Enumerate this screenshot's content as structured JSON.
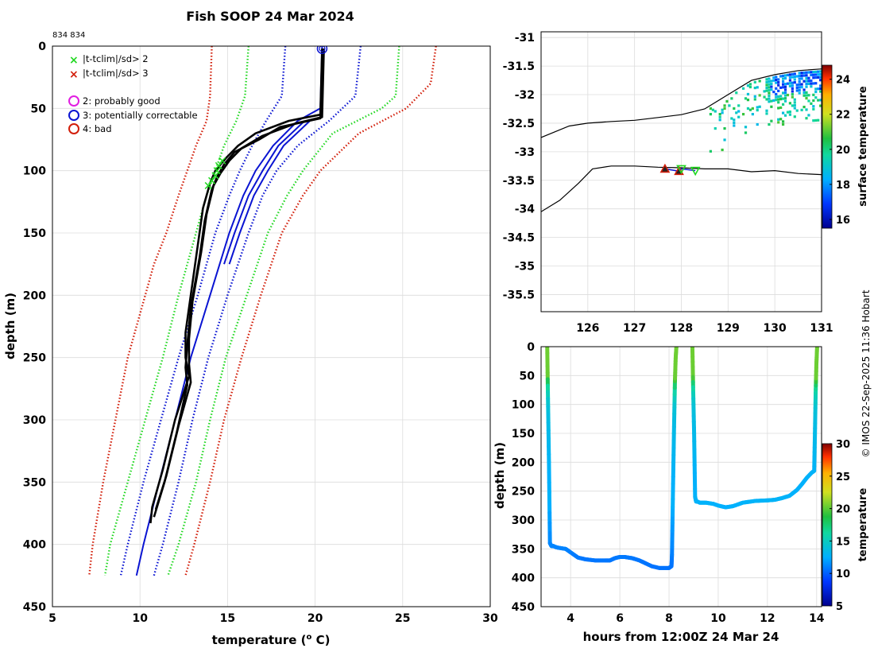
{
  "figure": {
    "title": "Fish SOOP 24 Mar 2024",
    "id_label": "834 834",
    "credit": "© IMOS 22-Sep-2025 11:36 Hobart"
  },
  "colors": {
    "black": "#000000",
    "blue": "#0a14d2",
    "green": "#22d822",
    "red": "#d21e0a",
    "magenta": "#e11ee1",
    "grid": "#dcdcdc",
    "land": "#000000"
  },
  "chart_data": [
    {
      "type": "line",
      "name": "temperature-profile",
      "title": "Fish SOOP 24 Mar 2024",
      "xlabel": "temperature (° C)",
      "ylabel": "depth (m)",
      "xlim": [
        5,
        30
      ],
      "ylim": [
        450,
        0
      ],
      "xticks": [
        5,
        10,
        15,
        20,
        25,
        30
      ],
      "yticks": [
        0,
        50,
        100,
        150,
        200,
        250,
        300,
        350,
        400,
        450
      ],
      "grid": true,
      "legend": {
        "position": "top-left",
        "entries": [
          {
            "label": "|t-tclim|/sd> 2",
            "marker": "x",
            "color": "#22d822"
          },
          {
            "label": "|t-tclim|/sd> 3",
            "marker": "x",
            "color": "#d21e0a"
          },
          {
            "label": "2: probably good",
            "marker": "o",
            "color": "#e11ee1"
          },
          {
            "label": "3: potentially correctable",
            "marker": "o",
            "color": "#0a14d2"
          },
          {
            "label": "4: bad",
            "marker": "o",
            "color": "#d21e0a"
          }
        ]
      },
      "climatology": [
        {
          "name": "clim-red-left",
          "color": "#d21e0a",
          "style": "dotted",
          "depths": [
            0,
            40,
            60,
            80,
            100,
            120,
            150,
            175,
            200,
            250,
            300,
            350,
            400,
            425
          ],
          "temps": [
            14.1,
            14.0,
            13.8,
            13.2,
            12.7,
            12.2,
            11.5,
            10.8,
            10.3,
            9.3,
            8.6,
            7.9,
            7.3,
            7.1
          ]
        },
        {
          "name": "clim-green-left",
          "color": "#22d822",
          "style": "dotted",
          "depths": [
            0,
            40,
            60,
            80,
            100,
            120,
            150,
            175,
            200,
            250,
            300,
            350,
            400,
            425
          ],
          "temps": [
            16.2,
            16.0,
            15.5,
            14.8,
            14.3,
            13.8,
            13.2,
            12.7,
            12.2,
            11.3,
            10.3,
            9.3,
            8.3,
            8.0
          ]
        },
        {
          "name": "clim-blue-left",
          "color": "#0a14d2",
          "style": "dotted",
          "depths": [
            0,
            40,
            60,
            80,
            100,
            120,
            150,
            175,
            200,
            250,
            300,
            350,
            400,
            425
          ],
          "temps": [
            18.3,
            18.1,
            17.2,
            16.4,
            15.7,
            15.1,
            14.3,
            13.8,
            13.3,
            12.2,
            11.2,
            10.2,
            9.3,
            8.9
          ]
        },
        {
          "name": "clim-blue-right",
          "color": "#0a14d2",
          "style": "dotted",
          "depths": [
            0,
            40,
            60,
            80,
            100,
            120,
            150,
            175,
            200,
            250,
            300,
            350,
            400,
            425
          ],
          "temps": [
            22.6,
            22.3,
            20.8,
            19.0,
            17.8,
            17.0,
            16.2,
            15.6,
            15.0,
            13.9,
            13.0,
            12.2,
            11.3,
            10.8
          ]
        },
        {
          "name": "clim-green-right",
          "color": "#22d822",
          "style": "dotted",
          "depths": [
            0,
            40,
            50,
            70,
            100,
            120,
            150,
            175,
            200,
            250,
            300,
            350,
            400,
            425
          ],
          "temps": [
            24.8,
            24.6,
            23.8,
            21.0,
            19.3,
            18.4,
            17.3,
            16.7,
            16.1,
            14.9,
            14.0,
            13.2,
            12.2,
            11.6
          ]
        },
        {
          "name": "clim-red-right",
          "color": "#d21e0a",
          "style": "dotted",
          "depths": [
            0,
            30,
            50,
            70,
            100,
            120,
            150,
            175,
            200,
            250,
            300,
            350,
            400,
            425
          ],
          "temps": [
            26.9,
            26.6,
            25.2,
            22.5,
            20.3,
            19.3,
            18.1,
            17.5,
            16.9,
            15.8,
            14.8,
            14.0,
            13.1,
            12.6
          ]
        }
      ],
      "climatology_mean": {
        "name": "clim-mean",
        "color": "#0a14d2",
        "depths": [
          0,
          50,
          60,
          80,
          100,
          120,
          150,
          200,
          250,
          300,
          350,
          400,
          425
        ],
        "temps": [
          20.4,
          20.3,
          19.0,
          17.6,
          16.6,
          15.9,
          15.1,
          14.0,
          12.9,
          12.0,
          11.1,
          10.2,
          9.8
        ]
      },
      "climatology_mean_double": [
        {
          "name": "clim-mean-double-a",
          "color": "#0a14d2",
          "depths": [
            60,
            80,
            100,
            120,
            150,
            175
          ],
          "temps": [
            19.4,
            17.9,
            17.0,
            16.2,
            15.4,
            14.8
          ]
        },
        {
          "name": "clim-mean-double-b",
          "color": "#0a14d2",
          "depths": [
            60,
            80,
            100,
            120,
            150,
            175
          ],
          "temps": [
            19.7,
            18.2,
            17.3,
            16.5,
            15.7,
            15.1
          ]
        }
      ],
      "profiles": [
        {
          "name": "profile-1",
          "color": "#000000",
          "depths": [
            2,
            55,
            60,
            70,
            80,
            90,
            100,
            110,
            130,
            160,
            200,
            230,
            250,
            265,
            300,
            340,
            370,
            383
          ],
          "temps": [
            20.4,
            20.3,
            18.5,
            16.6,
            15.6,
            14.9,
            14.3,
            14.0,
            13.6,
            13.3,
            12.9,
            12.6,
            12.6,
            12.8,
            12.0,
            11.3,
            10.7,
            10.6
          ]
        },
        {
          "name": "profile-2",
          "color": "#000000",
          "depths": [
            2,
            57,
            62,
            72,
            82,
            92,
            102,
            112,
            135,
            165,
            205,
            235,
            255,
            270,
            305,
            345,
            372
          ],
          "temps": [
            20.5,
            20.4,
            18.9,
            17.0,
            15.8,
            15.1,
            14.6,
            14.2,
            13.8,
            13.5,
            13.0,
            12.8,
            12.8,
            12.9,
            12.2,
            11.5,
            10.9
          ]
        },
        {
          "name": "profile-3",
          "color": "#000000",
          "depths": [
            2,
            58,
            65,
            75,
            85,
            95,
            105,
            115,
            140,
            170,
            210,
            240,
            258,
            272,
            310,
            350,
            378
          ],
          "temps": [
            20.5,
            20.3,
            18.0,
            16.8,
            15.4,
            14.8,
            14.4,
            14.1,
            13.7,
            13.4,
            12.9,
            12.7,
            12.6,
            12.7,
            12.1,
            11.4,
            10.8
          ]
        }
      ],
      "flag_marker": {
        "depth": 2,
        "temp": 20.4,
        "color": "#0a14d2"
      },
      "outlier_points": [
        {
          "depth": 92,
          "temp": 14.7
        },
        {
          "depth": 96,
          "temp": 14.5
        },
        {
          "depth": 100,
          "temp": 14.4
        },
        {
          "depth": 104,
          "temp": 14.3
        },
        {
          "depth": 108,
          "temp": 14.1
        },
        {
          "depth": 112,
          "temp": 13.9
        }
      ]
    },
    {
      "type": "heatmap",
      "name": "surface-temperature-map",
      "xlim": [
        125,
        131
      ],
      "ylim": [
        -35.8,
        -30.9
      ],
      "xticks": [
        126,
        127,
        128,
        129,
        130,
        131
      ],
      "yticks": [
        -31,
        -31.5,
        -32,
        -32.5,
        -33,
        -33.5,
        -34,
        -34.5,
        -35,
        -35.5
      ],
      "colorbar": {
        "label": "surface temperature",
        "range": [
          15.5,
          24.8
        ],
        "ticks": [
          16,
          18,
          20,
          22,
          24
        ]
      },
      "coast_north": {
        "lon": [
          125,
          125.6,
          126,
          126.5,
          127,
          127.5,
          128,
          128.5,
          129,
          129.5,
          130,
          130.5,
          131
        ],
        "lat": [
          -32.75,
          -32.55,
          -32.5,
          -32.47,
          -32.45,
          -32.4,
          -32.35,
          -32.25,
          -32.0,
          -31.75,
          -31.65,
          -31.58,
          -31.55
        ]
      },
      "coast_south": {
        "lon": [
          125,
          125.4,
          125.8,
          126.1,
          126.5,
          127,
          127.5,
          128,
          128.5,
          129,
          129.5,
          130,
          130.5,
          131
        ],
        "lat": [
          -34.05,
          -33.85,
          -33.55,
          -33.3,
          -33.25,
          -33.25,
          -33.27,
          -33.28,
          -33.3,
          -33.3,
          -33.35,
          -33.33,
          -33.38,
          -33.4
        ]
      },
      "drops": [
        {
          "lon": 127.65,
          "lat": -33.3,
          "marker": "triangle-up",
          "color": "#d21e0a"
        },
        {
          "lon": 127.95,
          "lat": -33.34,
          "marker": "triangle-up",
          "color": "#d21e0a"
        },
        {
          "lon": 128.0,
          "lat": -33.3,
          "marker": "triangle-down",
          "color": "#22d822"
        },
        {
          "lon": 128.3,
          "lat": -33.33,
          "marker": "triangle-down",
          "color": "#22d822"
        }
      ]
    },
    {
      "type": "scatter",
      "name": "depth-time-plot",
      "xlabel": "hours from 12:00Z 24 Mar 24",
      "ylabel": "depth (m)",
      "xlim": [
        2.8,
        14.2
      ],
      "ylim": [
        450,
        0
      ],
      "xticks": [
        4,
        6,
        8,
        10,
        12,
        14
      ],
      "yticks": [
        0,
        50,
        100,
        150,
        200,
        250,
        300,
        350,
        400,
        450
      ],
      "colorbar": {
        "label": "temperature",
        "range": [
          5,
          30
        ],
        "ticks": [
          5,
          10,
          15,
          20,
          25,
          30
        ]
      },
      "tracks": [
        {
          "hours": [
            3.05,
            3.08,
            3.12,
            3.16,
            3.22,
            3.3,
            3.4,
            3.5,
            3.8,
            4.0,
            4.3,
            4.6,
            5.0,
            5.4,
            5.6,
            5.8,
            6.0,
            6.2,
            6.5,
            6.8,
            7.0,
            7.3,
            7.6,
            7.8,
            8.0,
            8.1,
            8.12
          ],
          "depths": [
            0,
            90,
            200,
            340,
            345,
            345,
            347,
            348,
            350,
            356,
            365,
            368,
            370,
            370,
            370,
            366,
            364,
            364,
            366,
            370,
            374,
            380,
            383,
            383,
            383,
            380,
            360
          ]
        },
        {
          "hours": [
            8.12,
            8.16,
            8.2,
            8.24,
            8.27,
            8.3
          ],
          "depths": [
            360,
            250,
            150,
            60,
            20,
            0
          ]
        },
        {
          "hours": [
            8.95,
            8.98,
            9.02,
            9.06,
            9.1,
            9.15,
            9.25,
            9.5,
            9.8,
            10.0,
            10.3,
            10.6,
            11.0,
            11.5,
            12.0,
            12.3,
            12.6,
            12.9,
            13.2,
            13.4,
            13.6,
            13.8,
            13.9
          ],
          "depths": [
            0,
            70,
            150,
            260,
            268,
            268,
            270,
            270,
            272,
            275,
            278,
            276,
            270,
            267,
            266,
            265,
            262,
            258,
            248,
            238,
            227,
            218,
            215
          ]
        },
        {
          "hours": [
            13.9,
            13.93,
            13.96,
            13.99,
            14.02
          ],
          "depths": [
            215,
            150,
            80,
            30,
            0
          ]
        }
      ]
    }
  ]
}
